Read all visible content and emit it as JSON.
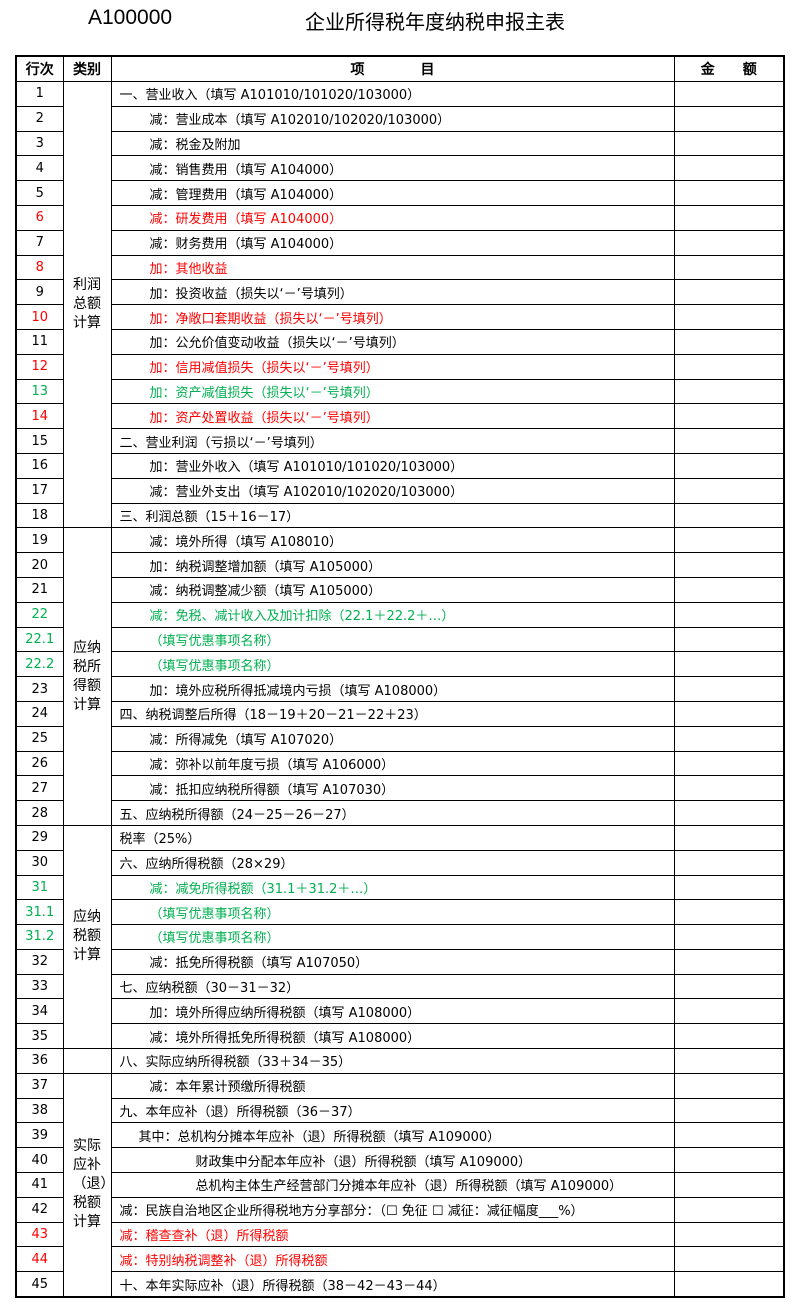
{
  "header": {
    "code": "A100000",
    "title": "企业所得税年度纳税申报主表"
  },
  "columns": {
    "row_no": "行次",
    "category": "类别",
    "item": "项　　　　目",
    "amount": "金　　额"
  },
  "categories": [
    "利润总额计算",
    "应纳税所得额计算",
    "应纳税额计算",
    "",
    "实际应补（退）税额计算"
  ],
  "colors": {
    "red": "#ff0000",
    "green": "#00b050"
  },
  "rows": [
    {
      "n": "1",
      "t": "一、营业收入（填写 A101010/101020/103000）",
      "c": "",
      "i": 0,
      "g": 0
    },
    {
      "n": "2",
      "t": "减：营业成本（填写 A102010/102020/103000）",
      "c": "",
      "i": 1,
      "g": 0
    },
    {
      "n": "3",
      "t": "减：税金及附加",
      "c": "",
      "i": 1,
      "g": 0
    },
    {
      "n": "4",
      "t": "减：销售费用（填写 A104000）",
      "c": "",
      "i": 1,
      "g": 0
    },
    {
      "n": "5",
      "t": "减：管理费用（填写 A104000）",
      "c": "",
      "i": 1,
      "g": 0
    },
    {
      "n": "6",
      "t": "减：研发费用（填写 A104000）",
      "c": "red",
      "i": 1,
      "g": 0
    },
    {
      "n": "7",
      "t": "减：财务费用（填写 A104000）",
      "c": "",
      "i": 1,
      "g": 0
    },
    {
      "n": "8",
      "t": "加：其他收益",
      "c": "red",
      "i": 1,
      "g": 0
    },
    {
      "n": "9",
      "t": "加：投资收益（损失以‘－’号填列）",
      "c": "",
      "i": 1,
      "g": 0
    },
    {
      "n": "10",
      "t": "加：净敞口套期收益（损失以‘－’号填列）",
      "c": "red",
      "i": 1,
      "g": 0
    },
    {
      "n": "11",
      "t": "加：公允价值变动收益（损失以‘－’号填列）",
      "c": "",
      "i": 1,
      "g": 0
    },
    {
      "n": "12",
      "t": "加：信用减值损失（损失以‘－’号填列）",
      "c": "red",
      "i": 1,
      "g": 0
    },
    {
      "n": "13",
      "t": "加：资产减值损失（损失以‘－’号填列）",
      "c": "green",
      "i": 1,
      "g": 0
    },
    {
      "n": "14",
      "t": "加：资产处置收益（损失以‘－’号填列）",
      "c": "red",
      "i": 1,
      "g": 0
    },
    {
      "n": "15",
      "t": "二、营业利润（亏损以‘－’号填列）",
      "c": "",
      "i": 0,
      "g": 0
    },
    {
      "n": "16",
      "t": "加：营业外收入（填写 A101010/101020/103000）",
      "c": "",
      "i": 1,
      "g": 0
    },
    {
      "n": "17",
      "t": "减：营业外支出（填写 A102010/102020/103000）",
      "c": "",
      "i": 1,
      "g": 0
    },
    {
      "n": "18",
      "t": "三、利润总额（15＋16－17）",
      "c": "",
      "i": 0,
      "g": 0
    },
    {
      "n": "19",
      "t": "减：境外所得（填写 A108010）",
      "c": "",
      "i": 1,
      "g": 1
    },
    {
      "n": "20",
      "t": "加：纳税调整增加额（填写 A105000）",
      "c": "",
      "i": 1,
      "g": 1
    },
    {
      "n": "21",
      "t": "减：纳税调整减少额（填写 A105000）",
      "c": "",
      "i": 1,
      "g": 1
    },
    {
      "n": "22",
      "t": "减：免税、减计收入及加计扣除（22.1＋22.2＋…）",
      "c": "green",
      "i": 1,
      "g": 1
    },
    {
      "n": "22.1",
      "t": "（填写优惠事项名称）",
      "c": "green",
      "i": 1,
      "g": 1
    },
    {
      "n": "22.2",
      "t": "（填写优惠事项名称）",
      "c": "green",
      "i": 1,
      "g": 1
    },
    {
      "n": "23",
      "t": "加：境外应税所得抵减境内亏损（填写 A108000）",
      "c": "",
      "i": 1,
      "g": 1
    },
    {
      "n": "24",
      "t": "四、纳税调整后所得（18－19＋20－21－22＋23）",
      "c": "",
      "i": 0,
      "g": 1
    },
    {
      "n": "25",
      "t": "减：所得减免（填写 A107020）",
      "c": "",
      "i": 1,
      "g": 1
    },
    {
      "n": "26",
      "t": "减：弥补以前年度亏损（填写 A106000）",
      "c": "",
      "i": 1,
      "g": 1
    },
    {
      "n": "27",
      "t": "减：抵扣应纳税所得额（填写 A107030）",
      "c": "",
      "i": 1,
      "g": 1
    },
    {
      "n": "28",
      "t": "五、应纳税所得额（24－25－26－27）",
      "c": "",
      "i": 0,
      "g": 1
    },
    {
      "n": "29",
      "t": "税率（25%）",
      "c": "",
      "i": 0,
      "g": 2
    },
    {
      "n": "30",
      "t": "六、应纳所得税额（28×29）",
      "c": "",
      "i": 0,
      "g": 2
    },
    {
      "n": "31",
      "t": "减：减免所得税额（31.1＋31.2＋…）",
      "c": "green",
      "i": 1,
      "g": 2
    },
    {
      "n": "31.1",
      "t": "（填写优惠事项名称）",
      "c": "green",
      "i": 1,
      "g": 2
    },
    {
      "n": "31.2",
      "t": "（填写优惠事项名称）",
      "c": "green",
      "i": 1,
      "g": 2
    },
    {
      "n": "32",
      "t": "减：抵免所得税额（填写 A107050）",
      "c": "",
      "i": 1,
      "g": 2
    },
    {
      "n": "33",
      "t": "七、应纳税额（30－31－32）",
      "c": "",
      "i": 0,
      "g": 2
    },
    {
      "n": "34",
      "t": "加：境外所得应纳所得税额（填写 A108000）",
      "c": "",
      "i": 1,
      "g": 2
    },
    {
      "n": "35",
      "t": "减：境外所得抵免所得税额（填写 A108000）",
      "c": "",
      "i": 1,
      "g": 2
    },
    {
      "n": "36",
      "t": "八、实际应纳所得税额（33＋34－35）",
      "c": "",
      "i": 0,
      "g": 3
    },
    {
      "n": "37",
      "t": "减：本年累计预缴所得税额",
      "c": "",
      "i": 1,
      "g": 4
    },
    {
      "n": "38",
      "t": "九、本年应补（退）所得税额（36－37）",
      "c": "",
      "i": 0,
      "g": 4
    },
    {
      "n": "39",
      "t": "其中：总机构分摊本年应补（退）所得税额（填写 A109000）",
      "c": "",
      "i": 2,
      "g": 4
    },
    {
      "n": "40",
      "t": "财政集中分配本年应补（退）所得税额（填写 A109000）",
      "c": "",
      "i": 3,
      "g": 4
    },
    {
      "n": "41",
      "t": "总机构主体生产经营部门分摊本年应补（退）所得税额（填写 A109000）",
      "c": "",
      "i": 3,
      "g": 4
    },
    {
      "n": "42",
      "t": "减：民族自治地区企业所得税地方分享部分：（☐ 免征 ☐ 减征：减征幅度___%）",
      "c": "",
      "i": 0,
      "g": 4
    },
    {
      "n": "43",
      "t": "减：稽查查补（退）所得税额",
      "c": "red",
      "i": 0,
      "g": 4
    },
    {
      "n": "44",
      "t": "减：特别纳税调整补（退）所得税额",
      "c": "red",
      "i": 0,
      "g": 4
    },
    {
      "n": "45",
      "t": "十、本年实际应补（退）所得税额（38－42－43－44）",
      "c": "",
      "i": 0,
      "g": 4
    }
  ]
}
